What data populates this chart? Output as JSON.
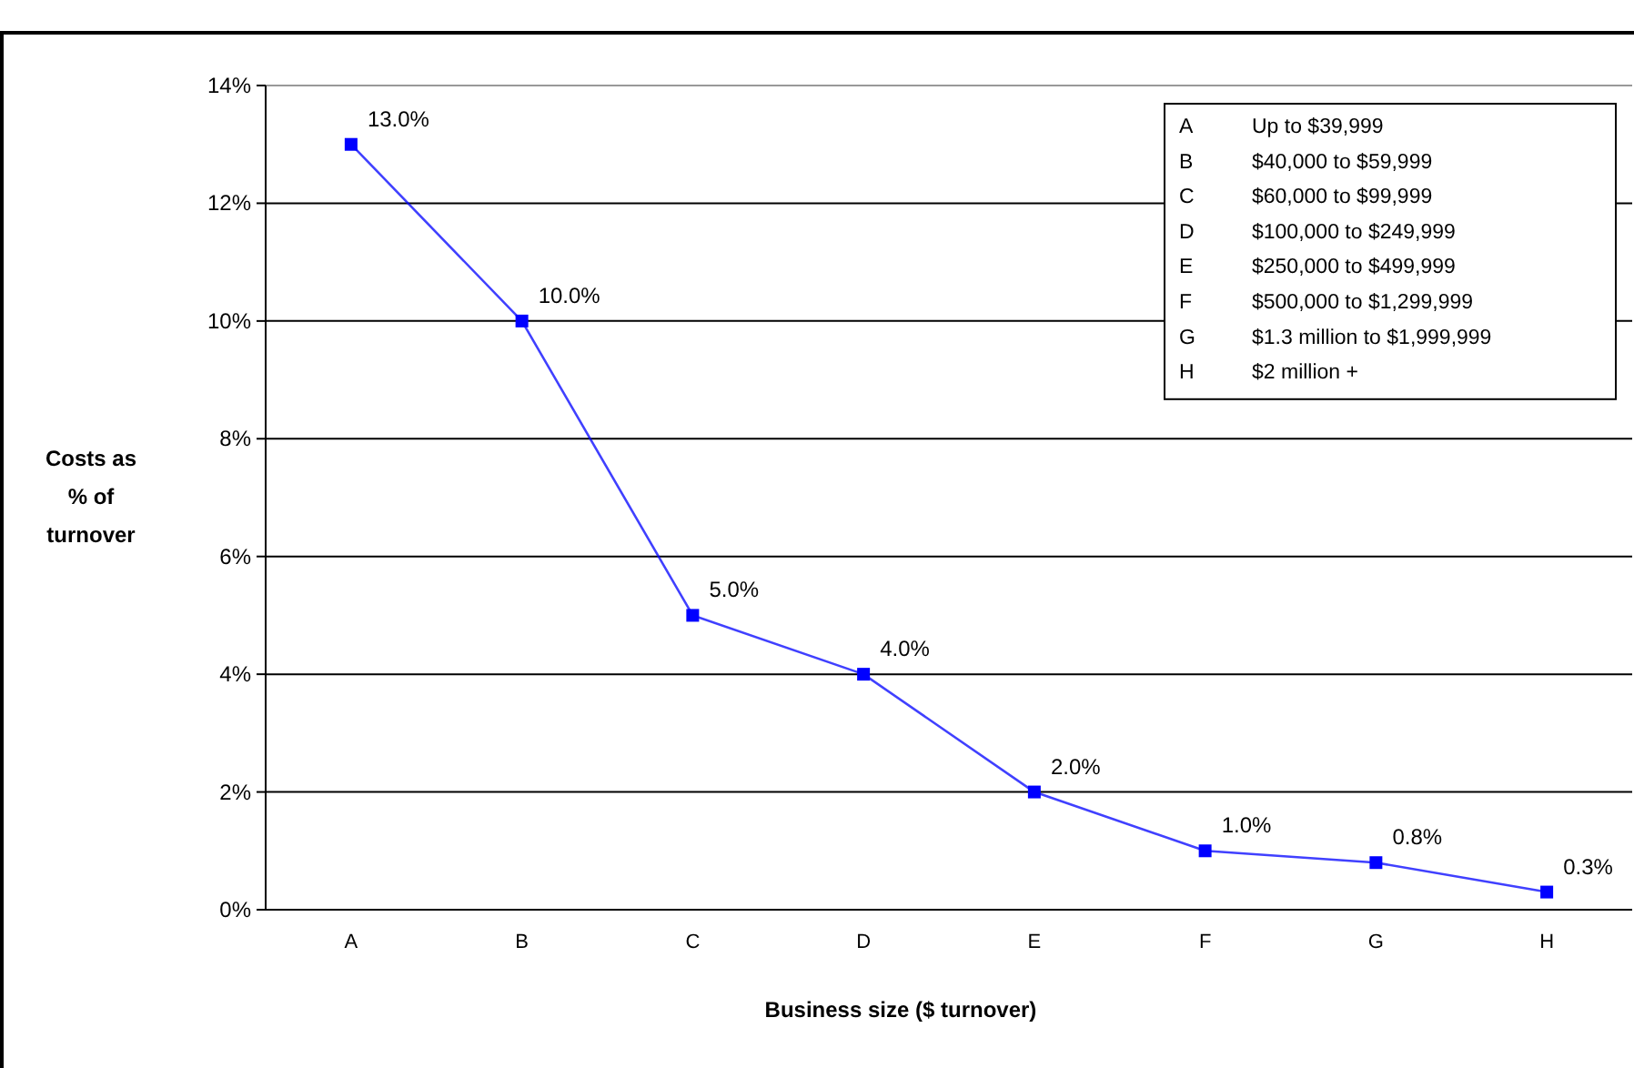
{
  "chart_data": {
    "type": "line",
    "xlabel": "Business size ($ turnover)",
    "ylabel": "Costs as % of turnover",
    "categories": [
      "A",
      "B",
      "C",
      "D",
      "E",
      "F",
      "G",
      "H"
    ],
    "series": [
      {
        "color": "#0000ff",
        "values": [
          13,
          10,
          5,
          4,
          2,
          1,
          0.8,
          0.3
        ],
        "value_labels": [
          "13.0%",
          "10.0%",
          "5.0%",
          "4.0%",
          "2.0%",
          "1.0%",
          "0.8%",
          "0.3%"
        ]
      }
    ],
    "ylim": [
      0,
      14
    ],
    "yticks": [
      {
        "value": 0,
        "label": "0%"
      },
      {
        "value": 2,
        "label": "2%"
      },
      {
        "value": 4,
        "label": "4%"
      },
      {
        "value": 6,
        "label": "6%"
      },
      {
        "value": 8,
        "label": "8%"
      },
      {
        "value": 10,
        "label": "10%"
      },
      {
        "value": 12,
        "label": "12%"
      },
      {
        "value": 14,
        "label": "14%"
      }
    ],
    "grid": "y",
    "marker": "square",
    "line_style": "solid",
    "annotations": [
      "A Up to $39,999",
      "B $40,000 to $59,999",
      "C $60,000 to $99,999",
      "D $100,000 to $249,999",
      "E $250,000 to $499,999",
      "F $500,000 to $1,299,999",
      "G $1.3 million to $1,999,999",
      "H $2 million +"
    ]
  }
}
